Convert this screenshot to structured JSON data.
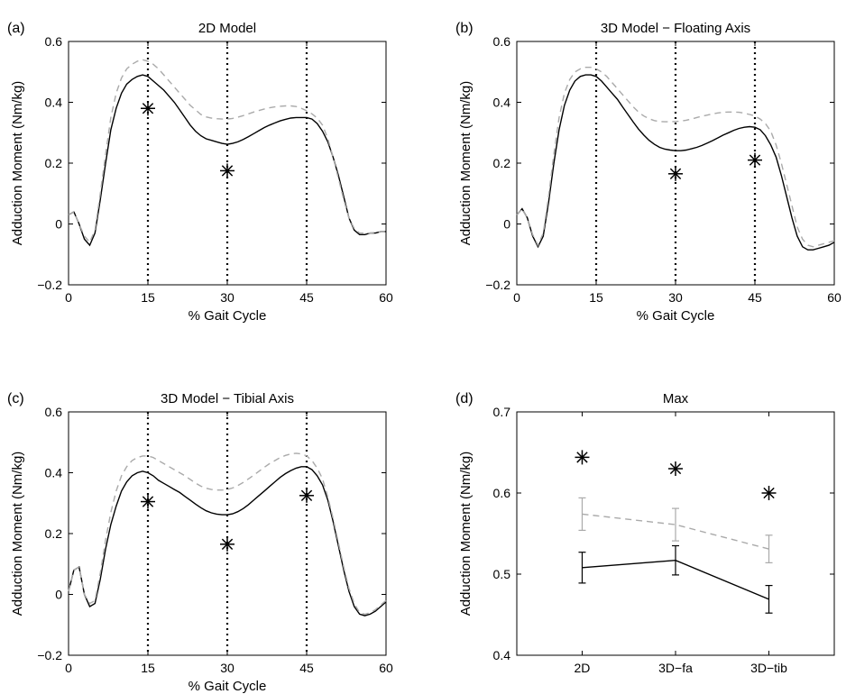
{
  "chart_data": [
    {
      "panel_label": "(a)",
      "type": "line",
      "title": "2D Model",
      "xlabel": "% Gait Cycle",
      "ylabel": "Adduction Moment (Nm/kg)",
      "xlim": [
        0,
        60
      ],
      "ylim": [
        -0.2,
        0.6
      ],
      "xticks": [
        0,
        15,
        30,
        45,
        60
      ],
      "yticks": [
        -0.2,
        0,
        0.2,
        0.4,
        0.6
      ],
      "vlines": [
        15,
        30,
        45
      ],
      "series": [
        {
          "style": "solid",
          "color": "#000000",
          "x": [
            0,
            1,
            2,
            3,
            4,
            5,
            6,
            7,
            8,
            9,
            10,
            11,
            12,
            13,
            14,
            15,
            16,
            17,
            18,
            19,
            20,
            21,
            22,
            23,
            24,
            25,
            26,
            27,
            28,
            29,
            30,
            31,
            32,
            33,
            34,
            35,
            36,
            37,
            38,
            39,
            40,
            41,
            42,
            43,
            44,
            45,
            46,
            47,
            48,
            49,
            50,
            51,
            52,
            53,
            54,
            55,
            56,
            57,
            58,
            59,
            60
          ],
          "y": [
            0.03,
            0.04,
            0.0,
            -0.05,
            -0.07,
            -0.03,
            0.08,
            0.2,
            0.31,
            0.38,
            0.43,
            0.46,
            0.475,
            0.485,
            0.49,
            0.485,
            0.47,
            0.455,
            0.44,
            0.42,
            0.4,
            0.375,
            0.35,
            0.325,
            0.305,
            0.29,
            0.28,
            0.275,
            0.27,
            0.265,
            0.262,
            0.265,
            0.27,
            0.278,
            0.287,
            0.297,
            0.307,
            0.317,
            0.325,
            0.332,
            0.339,
            0.344,
            0.348,
            0.35,
            0.35,
            0.35,
            0.345,
            0.33,
            0.305,
            0.27,
            0.22,
            0.16,
            0.09,
            0.02,
            -0.02,
            -0.035,
            -0.035,
            -0.03,
            -0.03,
            -0.025,
            -0.025
          ]
        },
        {
          "style": "dashed",
          "color": "#aaaaaa",
          "x": [
            0,
            1,
            2,
            3,
            4,
            5,
            6,
            7,
            8,
            9,
            10,
            11,
            12,
            13,
            14,
            15,
            16,
            17,
            18,
            19,
            20,
            21,
            22,
            23,
            24,
            25,
            26,
            27,
            28,
            29,
            30,
            31,
            32,
            33,
            34,
            35,
            36,
            37,
            38,
            39,
            40,
            41,
            42,
            43,
            44,
            45,
            46,
            47,
            48,
            49,
            50,
            51,
            52,
            53,
            54,
            55,
            56,
            57,
            58,
            59,
            60
          ],
          "y": [
            0.03,
            0.04,
            0.0,
            -0.04,
            -0.06,
            -0.02,
            0.1,
            0.23,
            0.35,
            0.43,
            0.48,
            0.51,
            0.525,
            0.535,
            0.54,
            0.535,
            0.525,
            0.51,
            0.49,
            0.47,
            0.45,
            0.43,
            0.41,
            0.39,
            0.375,
            0.36,
            0.352,
            0.348,
            0.346,
            0.345,
            0.345,
            0.347,
            0.351,
            0.356,
            0.362,
            0.368,
            0.373,
            0.378,
            0.382,
            0.385,
            0.387,
            0.388,
            0.388,
            0.386,
            0.38,
            0.372,
            0.362,
            0.348,
            0.325,
            0.28,
            0.22,
            0.15,
            0.08,
            0.02,
            -0.015,
            -0.03,
            -0.03,
            -0.03,
            -0.028,
            -0.025,
            -0.025
          ]
        }
      ],
      "markers": [
        {
          "x": 15,
          "y": 0.38
        },
        {
          "x": 30,
          "y": 0.175
        }
      ]
    },
    {
      "panel_label": "(b)",
      "type": "line",
      "title": "3D Model − Floating Axis",
      "xlabel": "% Gait Cycle",
      "ylabel": "Adduction Moment (Nm/kg)",
      "xlim": [
        0,
        60
      ],
      "ylim": [
        -0.2,
        0.6
      ],
      "xticks": [
        0,
        15,
        30,
        45,
        60
      ],
      "yticks": [
        -0.2,
        0,
        0.2,
        0.4,
        0.6
      ],
      "vlines": [
        15,
        30,
        45
      ],
      "series": [
        {
          "style": "solid",
          "color": "#000000",
          "x": [
            0,
            1,
            2,
            3,
            4,
            5,
            6,
            7,
            8,
            9,
            10,
            11,
            12,
            13,
            14,
            15,
            16,
            17,
            18,
            19,
            20,
            21,
            22,
            23,
            24,
            25,
            26,
            27,
            28,
            29,
            30,
            31,
            32,
            33,
            34,
            35,
            36,
            37,
            38,
            39,
            40,
            41,
            42,
            43,
            44,
            45,
            46,
            47,
            48,
            49,
            50,
            51,
            52,
            53,
            54,
            55,
            56,
            57,
            58,
            59,
            60
          ],
          "y": [
            0.03,
            0.05,
            0.02,
            -0.04,
            -0.075,
            -0.04,
            0.07,
            0.2,
            0.31,
            0.39,
            0.44,
            0.47,
            0.485,
            0.49,
            0.49,
            0.485,
            0.47,
            0.45,
            0.43,
            0.41,
            0.385,
            0.36,
            0.335,
            0.312,
            0.292,
            0.275,
            0.262,
            0.252,
            0.246,
            0.243,
            0.241,
            0.241,
            0.243,
            0.247,
            0.252,
            0.258,
            0.266,
            0.274,
            0.283,
            0.292,
            0.3,
            0.308,
            0.314,
            0.318,
            0.32,
            0.318,
            0.31,
            0.29,
            0.26,
            0.22,
            0.16,
            0.09,
            0.02,
            -0.04,
            -0.075,
            -0.085,
            -0.085,
            -0.08,
            -0.075,
            -0.07,
            -0.06
          ]
        },
        {
          "style": "dashed",
          "color": "#aaaaaa",
          "x": [
            0,
            1,
            2,
            3,
            4,
            5,
            6,
            7,
            8,
            9,
            10,
            11,
            12,
            13,
            14,
            15,
            16,
            17,
            18,
            19,
            20,
            21,
            22,
            23,
            24,
            25,
            26,
            27,
            28,
            29,
            30,
            31,
            32,
            33,
            34,
            35,
            36,
            37,
            38,
            39,
            40,
            41,
            42,
            43,
            44,
            45,
            46,
            47,
            48,
            49,
            50,
            51,
            52,
            53,
            54,
            55,
            56,
            57,
            58,
            59,
            60
          ],
          "y": [
            0.03,
            0.05,
            0.02,
            -0.035,
            -0.07,
            -0.03,
            0.09,
            0.23,
            0.35,
            0.43,
            0.475,
            0.5,
            0.51,
            0.515,
            0.515,
            0.51,
            0.5,
            0.485,
            0.465,
            0.445,
            0.425,
            0.405,
            0.385,
            0.368,
            0.355,
            0.346,
            0.34,
            0.337,
            0.336,
            0.336,
            0.337,
            0.338,
            0.341,
            0.345,
            0.35,
            0.354,
            0.358,
            0.362,
            0.365,
            0.367,
            0.368,
            0.368,
            0.367,
            0.364,
            0.36,
            0.355,
            0.345,
            0.33,
            0.305,
            0.26,
            0.2,
            0.13,
            0.06,
            -0.01,
            -0.05,
            -0.07,
            -0.075,
            -0.07,
            -0.065,
            -0.06,
            -0.055
          ]
        }
      ],
      "markers": [
        {
          "x": 30,
          "y": 0.165
        },
        {
          "x": 45,
          "y": 0.21
        }
      ]
    },
    {
      "panel_label": "(c)",
      "type": "line",
      "title": "3D Model − Tibial Axis",
      "xlabel": "% Gait Cycle",
      "ylabel": "Adduction Moment (Nm/kg)",
      "xlim": [
        0,
        60
      ],
      "ylim": [
        -0.2,
        0.6
      ],
      "xticks": [
        0,
        15,
        30,
        45,
        60
      ],
      "yticks": [
        -0.2,
        0,
        0.2,
        0.4,
        0.6
      ],
      "vlines": [
        15,
        30,
        45
      ],
      "series": [
        {
          "style": "solid",
          "color": "#000000",
          "x": [
            0,
            1,
            2,
            3,
            4,
            5,
            6,
            7,
            8,
            9,
            10,
            11,
            12,
            13,
            14,
            15,
            16,
            17,
            18,
            19,
            20,
            21,
            22,
            23,
            24,
            25,
            26,
            27,
            28,
            29,
            30,
            31,
            32,
            33,
            34,
            35,
            36,
            37,
            38,
            39,
            40,
            41,
            42,
            43,
            44,
            45,
            46,
            47,
            48,
            49,
            50,
            51,
            52,
            53,
            54,
            55,
            56,
            57,
            58,
            59,
            60
          ],
          "y": [
            0.01,
            0.08,
            0.09,
            0.0,
            -0.04,
            -0.03,
            0.05,
            0.15,
            0.23,
            0.29,
            0.34,
            0.37,
            0.39,
            0.4,
            0.405,
            0.4,
            0.39,
            0.375,
            0.365,
            0.355,
            0.345,
            0.335,
            0.322,
            0.31,
            0.297,
            0.285,
            0.275,
            0.268,
            0.264,
            0.262,
            0.262,
            0.265,
            0.272,
            0.282,
            0.295,
            0.31,
            0.325,
            0.34,
            0.355,
            0.37,
            0.385,
            0.397,
            0.407,
            0.415,
            0.42,
            0.42,
            0.41,
            0.39,
            0.36,
            0.31,
            0.24,
            0.16,
            0.08,
            0.01,
            -0.04,
            -0.065,
            -0.07,
            -0.065,
            -0.055,
            -0.04,
            -0.025
          ]
        },
        {
          "style": "dashed",
          "color": "#aaaaaa",
          "x": [
            0,
            1,
            2,
            3,
            4,
            5,
            6,
            7,
            8,
            9,
            10,
            11,
            12,
            13,
            14,
            15,
            16,
            17,
            18,
            19,
            20,
            21,
            22,
            23,
            24,
            25,
            26,
            27,
            28,
            29,
            30,
            31,
            32,
            33,
            34,
            35,
            36,
            37,
            38,
            39,
            40,
            41,
            42,
            43,
            44,
            45,
            46,
            47,
            48,
            49,
            50,
            51,
            52,
            53,
            54,
            55,
            56,
            57,
            58,
            59,
            60
          ],
          "y": [
            0.01,
            0.08,
            0.09,
            0.0,
            -0.03,
            -0.02,
            0.07,
            0.18,
            0.27,
            0.34,
            0.39,
            0.42,
            0.44,
            0.45,
            0.455,
            0.455,
            0.45,
            0.44,
            0.43,
            0.42,
            0.41,
            0.4,
            0.39,
            0.378,
            0.366,
            0.356,
            0.349,
            0.345,
            0.343,
            0.343,
            0.345,
            0.35,
            0.358,
            0.368,
            0.38,
            0.392,
            0.405,
            0.418,
            0.43,
            0.44,
            0.45,
            0.457,
            0.462,
            0.464,
            0.462,
            0.455,
            0.44,
            0.415,
            0.38,
            0.32,
            0.25,
            0.17,
            0.09,
            0.02,
            -0.03,
            -0.06,
            -0.065,
            -0.06,
            -0.05,
            -0.035,
            -0.02
          ]
        }
      ],
      "markers": [
        {
          "x": 15,
          "y": 0.305
        },
        {
          "x": 30,
          "y": 0.165
        },
        {
          "x": 45,
          "y": 0.325
        }
      ]
    },
    {
      "panel_label": "(d)",
      "type": "line",
      "title": "Max",
      "xlabel": "",
      "ylabel": "Adduction Moment (Nm/kg)",
      "categories": [
        "2D",
        "3D−fa",
        "3D−tib"
      ],
      "xlim": [
        0.3,
        3.7
      ],
      "ylim": [
        0.4,
        0.7
      ],
      "yticks": [
        0.4,
        0.5,
        0.6,
        0.7
      ],
      "series": [
        {
          "style": "solid",
          "color": "#000000",
          "values": [
            0.508,
            0.517,
            0.469
          ],
          "err": [
            0.019,
            0.018,
            0.017
          ]
        },
        {
          "style": "dashed",
          "color": "#aaaaaa",
          "values": [
            0.574,
            0.561,
            0.531
          ],
          "err": [
            0.02,
            0.02,
            0.017
          ]
        }
      ],
      "markers": [
        0.644,
        0.63,
        0.6
      ]
    }
  ]
}
